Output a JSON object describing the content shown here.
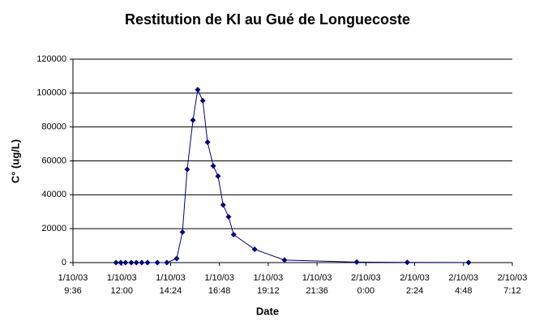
{
  "chart_data": {
    "type": "line",
    "title": "Restitution de KI au Gué de Longuecoste",
    "x_label": "Date",
    "y_label": "C° (ug/L)",
    "x": [
      "1/10/03 11:43",
      "1/10/03 11:57",
      "1/10/03 12:11",
      "1/10/03 12:28",
      "1/10/03 12:43",
      "1/10/03 12:59",
      "1/10/03 13:16",
      "1/10/03 13:45",
      "1/10/03 14:13",
      "1/10/03 14:42",
      "1/10/03 14:59",
      "1/10/03 15:13",
      "1/10/03 15:30",
      "1/10/03 15:44",
      "1/10/03 15:59",
      "1/10/03 16:13",
      "1/10/03 16:30",
      "1/10/03 16:44",
      "1/10/03 16:59",
      "1/10/03 17:15",
      "1/10/03 17:30",
      "1/10/03 18:32",
      "1/10/03 20:00",
      "1/10/03 23:33",
      "2/10/03 2:02",
      "2/10/03 5:03"
    ],
    "values": [
      0,
      0,
      0,
      0,
      0,
      0,
      0,
      0,
      0,
      2400,
      18000,
      55000,
      84000,
      102000,
      95500,
      71000,
      57000,
      51000,
      34000,
      27000,
      16500,
      7800,
      1500,
      300,
      100,
      50
    ],
    "color": "#000080",
    "xlim": [
      "1/10/03 9:36",
      "2/10/03 7:12"
    ],
    "xticks": [
      "1/10/03 9:36",
      "1/10/03 12:00",
      "1/10/03 14:24",
      "1/10/03 16:48",
      "1/10/03 19:12",
      "1/10/03 21:36",
      "2/10/03 0:00",
      "2/10/03 2:24",
      "2/10/03 4:48",
      "2/10/03 7:12"
    ],
    "ylim": [
      0,
      120000
    ],
    "yticks": [
      0,
      20000,
      40000,
      60000,
      80000,
      100000,
      120000
    ],
    "grid": true
  }
}
